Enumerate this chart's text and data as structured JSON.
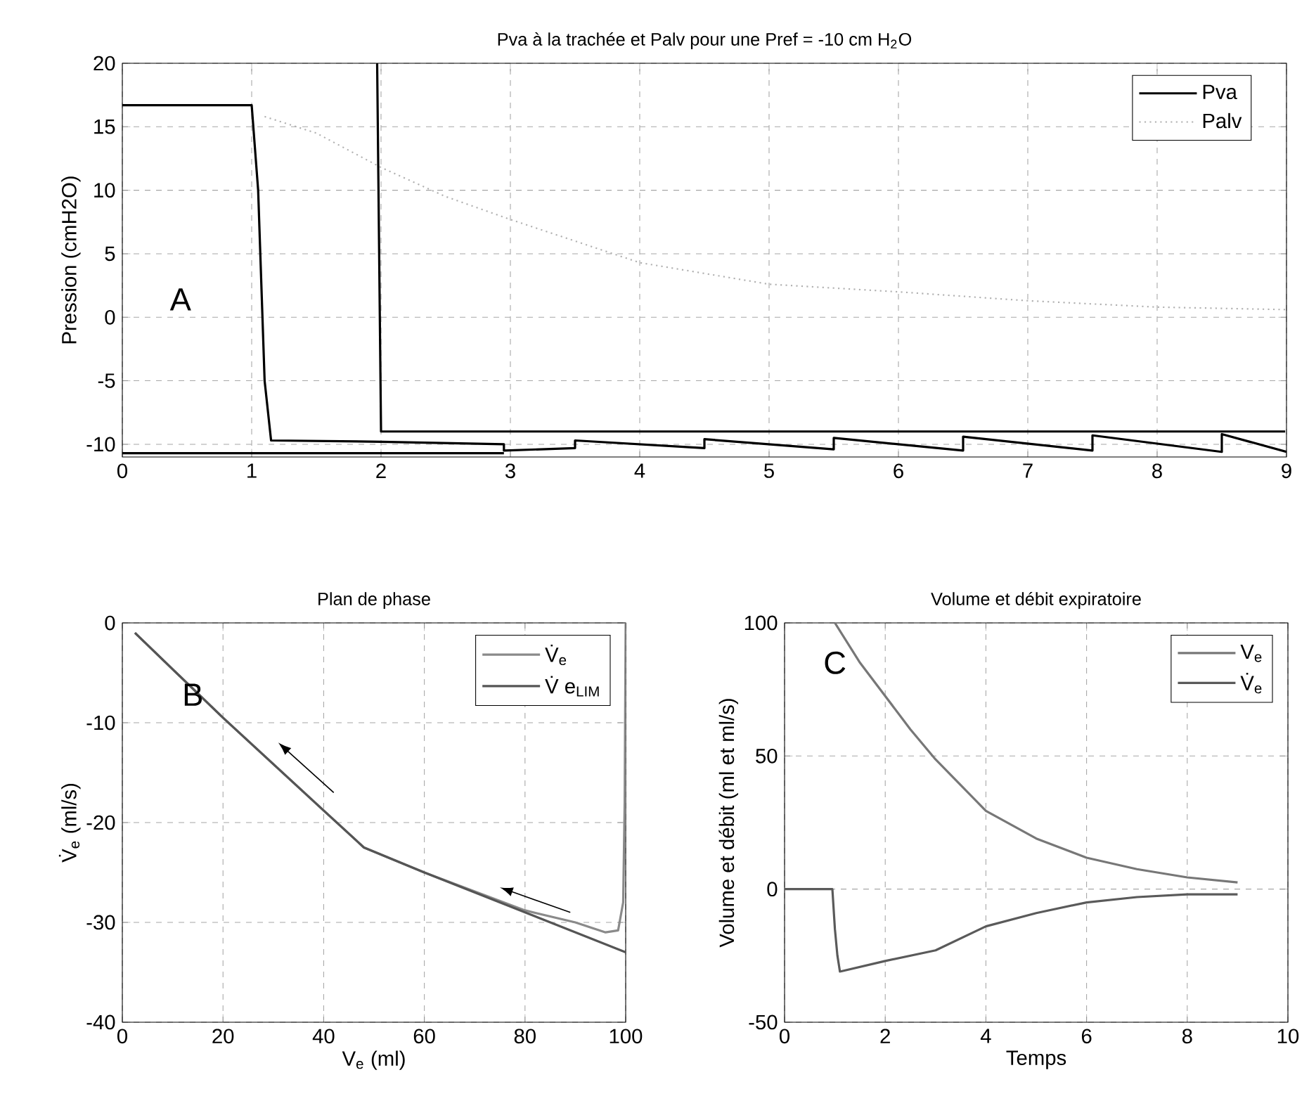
{
  "chart_data": [
    {
      "type": "line",
      "title": "Pva à la trachée et Palv pour une Pref = -10 cm H$_{2}$O",
      "ylabel": "Pression (cmH2O)",
      "xlim": [
        0,
        9
      ],
      "ylim": [
        -11,
        20
      ],
      "xticks": [
        0,
        1,
        2,
        3,
        4,
        5,
        6,
        7,
        8,
        9
      ],
      "yticks": [
        -10,
        -5,
        0,
        5,
        10,
        15,
        20
      ],
      "grid": true,
      "legend": "top right",
      "annotations": [
        "A"
      ],
      "series": [
        {
          "name": "Pva",
          "color": "#000000",
          "line_style": "solid",
          "x": [
            0,
            1.0,
            1.05,
            1.1,
            1.15,
            2,
            2.95,
            2.95,
            3.5,
            3.5,
            4.5,
            4.5,
            5.5,
            5.5,
            6.5,
            6.5,
            7.5,
            7.5,
            8.5,
            8.5,
            9
          ],
          "values": [
            16.7,
            16.7,
            10,
            -5,
            -9.7,
            -9.8,
            -10,
            -10.5,
            -10.3,
            -9.7,
            -10.3,
            -9.6,
            -10.4,
            -9.5,
            -10.5,
            -9.4,
            -10.5,
            -9.3,
            -10.6,
            -9.2,
            -10.6
          ]
        },
        {
          "name": "Palv",
          "color": "#b0b0b0",
          "line_style": "dotted",
          "x": [
            1.1,
            1.5,
            2,
            2.5,
            3,
            4,
            5,
            6,
            7,
            8,
            9
          ],
          "values": [
            15.8,
            14.5,
            11.8,
            9.5,
            7.7,
            4.3,
            2.6,
            2.0,
            1.3,
            0.8,
            0.6
          ]
        },
        {
          "color": "#000000",
          "line_style": "solid",
          "x": [
            1.97,
            2,
            8.99
          ],
          "values": [
            20,
            -9,
            -9
          ]
        },
        {
          "color": "#000000",
          "line_style": "solid",
          "x": [
            0,
            2.95
          ],
          "values": [
            -10.7,
            -10.7
          ]
        }
      ]
    },
    {
      "type": "line",
      "title": "Plan de phase",
      "xlabel": "V$_{e}$ (ml)",
      "ylabel": "V̇$_{e}$ (ml/s)",
      "xlim": [
        0,
        100
      ],
      "ylim": [
        -40,
        0
      ],
      "xticks": [
        0,
        20,
        40,
        60,
        80,
        100
      ],
      "yticks": [
        -40,
        -30,
        -20,
        -10,
        0
      ],
      "grid": true,
      "legend": "top right",
      "annotations": [
        "B"
      ],
      "series": [
        {
          "name": "V̇$_{e}$",
          "color": "#8a8a8a",
          "line_style": "solid",
          "x": [
            100,
            99.8,
            99.5,
            98.5,
            96,
            90,
            80,
            60,
            48,
            40,
            20,
            2.5
          ],
          "values": [
            0,
            -18,
            -28,
            -30.8,
            -31,
            -30,
            -28.8,
            -25,
            -22.5,
            -18.8,
            -9.5,
            -1
          ]
        },
        {
          "name": "V̇ e$_{LIM}$",
          "color": "#555555",
          "line_style": "solid",
          "x": [
            2.5,
            20,
            40,
            48,
            60,
            80,
            100
          ],
          "values": [
            -1,
            -9.5,
            -18.8,
            -22.5,
            -25,
            -29,
            -33
          ]
        }
      ]
    },
    {
      "type": "line",
      "title": "Volume et débit expiratoire",
      "xlabel": "Temps",
      "ylabel": "Volume et débit (ml et ml/s)",
      "xlim": [
        0,
        10
      ],
      "ylim": [
        -50,
        100
      ],
      "xticks": [
        0,
        2,
        4,
        6,
        8,
        10
      ],
      "yticks": [
        -50,
        0,
        50,
        100
      ],
      "grid": true,
      "legend": "top right",
      "annotations": [
        "C"
      ],
      "series": [
        {
          "name": "V$_{e}$",
          "color": "#777777",
          "line_style": "solid",
          "x": [
            1,
            1.5,
            2,
            2.5,
            3,
            4,
            5,
            6,
            7,
            8,
            9
          ],
          "values": [
            100,
            85,
            72.5,
            60,
            48.7,
            29.4,
            19,
            11.8,
            7.5,
            4.4,
            2.5
          ]
        },
        {
          "name": "V̇$_{e}$",
          "color": "#5a5a5a",
          "line_style": "solid",
          "x": [
            0,
            0.95,
            1.0,
            1.05,
            1.1,
            2,
            3,
            4,
            5,
            6,
            7,
            8,
            9
          ],
          "values": [
            0,
            0,
            -15,
            -25,
            -31,
            -27,
            -23,
            -14,
            -9,
            -5,
            -3,
            -2,
            -2
          ]
        }
      ]
    }
  ]
}
